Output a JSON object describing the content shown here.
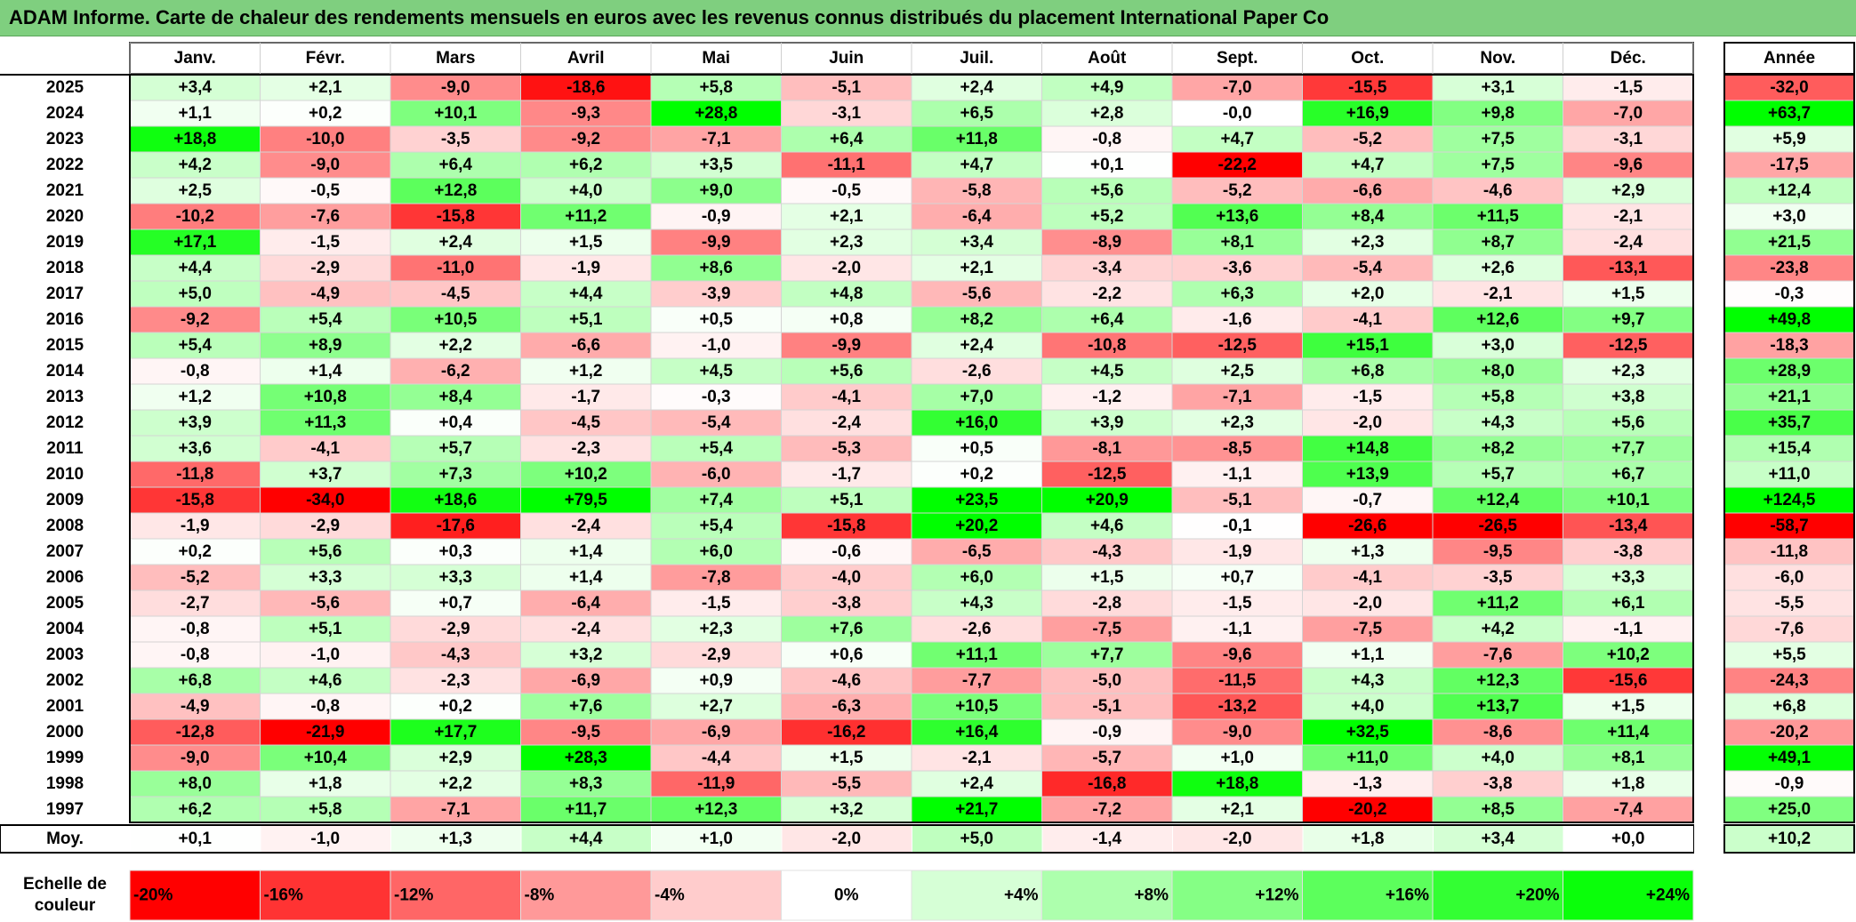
{
  "title": "ADAM Informe. Carte de chaleur des rendements mensuels en euros avec les revenus connus distribués du placement International Paper Co",
  "chart_data": {
    "type": "heatmap",
    "columns": [
      "Janv.",
      "Févr.",
      "Mars",
      "Avril",
      "Mai",
      "Juin",
      "Juil.",
      "Août",
      "Sept.",
      "Oct.",
      "Nov.",
      "Déc."
    ],
    "annual_header": "Année",
    "rows": [
      {
        "year": "2025",
        "values": [
          "+3,4",
          "+2,1",
          "-9,0",
          "-18,6",
          "+5,8",
          "-5,1",
          "+2,4",
          "+4,9",
          "-7,0",
          "-15,5",
          "+3,1",
          "-1,5"
        ],
        "annual": "-32,0"
      },
      {
        "year": "2024",
        "values": [
          "+1,1",
          "+0,2",
          "+10,1",
          "-9,3",
          "+28,8",
          "-3,1",
          "+6,5",
          "+2,8",
          "-0,0",
          "+16,9",
          "+9,8",
          "-7,0"
        ],
        "annual": "+63,7"
      },
      {
        "year": "2023",
        "values": [
          "+18,8",
          "-10,0",
          "-3,5",
          "-9,2",
          "-7,1",
          "+6,4",
          "+11,8",
          "-0,8",
          "+4,7",
          "-5,2",
          "+7,5",
          "-3,1"
        ],
        "annual": "+5,9"
      },
      {
        "year": "2022",
        "values": [
          "+4,2",
          "-9,0",
          "+6,4",
          "+6,2",
          "+3,5",
          "-11,1",
          "+4,7",
          "+0,1",
          "-22,2",
          "+4,7",
          "+7,5",
          "-9,6"
        ],
        "annual": "-17,5"
      },
      {
        "year": "2021",
        "values": [
          "+2,5",
          "-0,5",
          "+12,8",
          "+4,0",
          "+9,0",
          "-0,5",
          "-5,8",
          "+5,6",
          "-5,2",
          "-6,6",
          "-4,6",
          "+2,9"
        ],
        "annual": "+12,4"
      },
      {
        "year": "2020",
        "values": [
          "-10,2",
          "-7,6",
          "-15,8",
          "+11,2",
          "-0,9",
          "+2,1",
          "-6,4",
          "+5,2",
          "+13,6",
          "+8,4",
          "+11,5",
          "-2,1"
        ],
        "annual": "+3,0"
      },
      {
        "year": "2019",
        "values": [
          "+17,1",
          "-1,5",
          "+2,4",
          "+1,5",
          "-9,9",
          "+2,3",
          "+3,4",
          "-8,9",
          "+8,1",
          "+2,3",
          "+8,7",
          "-2,4"
        ],
        "annual": "+21,5"
      },
      {
        "year": "2018",
        "values": [
          "+4,4",
          "-2,9",
          "-11,0",
          "-1,9",
          "+8,6",
          "-2,0",
          "+2,1",
          "-3,4",
          "-3,6",
          "-5,4",
          "+2,6",
          "-13,1"
        ],
        "annual": "-23,8"
      },
      {
        "year": "2017",
        "values": [
          "+5,0",
          "-4,9",
          "-4,5",
          "+4,4",
          "-3,9",
          "+4,8",
          "-5,6",
          "-2,2",
          "+6,3",
          "+2,0",
          "-2,1",
          "+1,5"
        ],
        "annual": "-0,3"
      },
      {
        "year": "2016",
        "values": [
          "-9,2",
          "+5,4",
          "+10,5",
          "+5,1",
          "+0,5",
          "+0,8",
          "+8,2",
          "+6,4",
          "-1,6",
          "-4,1",
          "+12,6",
          "+9,7"
        ],
        "annual": "+49,8"
      },
      {
        "year": "2015",
        "values": [
          "+5,4",
          "+8,9",
          "+2,2",
          "-6,6",
          "-1,0",
          "-9,9",
          "+2,4",
          "-10,8",
          "-12,5",
          "+15,1",
          "+3,0",
          "-12,5"
        ],
        "annual": "-18,3"
      },
      {
        "year": "2014",
        "values": [
          "-0,8",
          "+1,4",
          "-6,2",
          "+1,2",
          "+4,5",
          "+5,6",
          "-2,6",
          "+4,5",
          "+2,5",
          "+6,8",
          "+8,0",
          "+2,3"
        ],
        "annual": "+28,9"
      },
      {
        "year": "2013",
        "values": [
          "+1,2",
          "+10,8",
          "+8,4",
          "-1,7",
          "-0,3",
          "-4,1",
          "+7,0",
          "-1,2",
          "-7,1",
          "-1,5",
          "+5,8",
          "+3,8"
        ],
        "annual": "+21,1"
      },
      {
        "year": "2012",
        "values": [
          "+3,9",
          "+11,3",
          "+0,4",
          "-4,5",
          "-5,4",
          "-2,4",
          "+16,0",
          "+3,9",
          "+2,3",
          "-2,0",
          "+4,3",
          "+5,6"
        ],
        "annual": "+35,7"
      },
      {
        "year": "2011",
        "values": [
          "+3,6",
          "-4,1",
          "+5,7",
          "-2,3",
          "+5,4",
          "-5,3",
          "+0,5",
          "-8,1",
          "-8,5",
          "+14,8",
          "+8,2",
          "+7,7"
        ],
        "annual": "+15,4"
      },
      {
        "year": "2010",
        "values": [
          "-11,8",
          "+3,7",
          "+7,3",
          "+10,2",
          "-6,0",
          "-1,7",
          "+0,2",
          "-12,5",
          "-1,1",
          "+13,9",
          "+5,7",
          "+6,7"
        ],
        "annual": "+11,0"
      },
      {
        "year": "2009",
        "values": [
          "-15,8",
          "-34,0",
          "+18,6",
          "+79,5",
          "+7,4",
          "+5,1",
          "+23,5",
          "+20,9",
          "-5,1",
          "-0,7",
          "+12,4",
          "+10,1"
        ],
        "annual": "+124,5"
      },
      {
        "year": "2008",
        "values": [
          "-1,9",
          "-2,9",
          "-17,6",
          "-2,4",
          "+5,4",
          "-15,8",
          "+20,2",
          "+4,6",
          "-0,1",
          "-26,6",
          "-26,5",
          "-13,4"
        ],
        "annual": "-58,7"
      },
      {
        "year": "2007",
        "values": [
          "+0,2",
          "+5,6",
          "+0,3",
          "+1,4",
          "+6,0",
          "-0,6",
          "-6,5",
          "-4,3",
          "-1,9",
          "+1,3",
          "-9,5",
          "-3,8"
        ],
        "annual": "-11,8"
      },
      {
        "year": "2006",
        "values": [
          "-5,2",
          "+3,3",
          "+3,3",
          "+1,4",
          "-7,8",
          "-4,0",
          "+6,0",
          "+1,5",
          "+0,7",
          "-4,1",
          "-3,5",
          "+3,3"
        ],
        "annual": "-6,0"
      },
      {
        "year": "2005",
        "values": [
          "-2,7",
          "-5,6",
          "+0,7",
          "-6,4",
          "-1,5",
          "-3,8",
          "+4,3",
          "-2,8",
          "-1,5",
          "-2,0",
          "+11,2",
          "+6,1"
        ],
        "annual": "-5,5"
      },
      {
        "year": "2004",
        "values": [
          "-0,8",
          "+5,1",
          "-2,9",
          "-2,4",
          "+2,3",
          "+7,6",
          "-2,6",
          "-7,5",
          "-1,1",
          "-7,5",
          "+4,2",
          "-1,1"
        ],
        "annual": "-7,6"
      },
      {
        "year": "2003",
        "values": [
          "-0,8",
          "-1,0",
          "-4,3",
          "+3,2",
          "-2,9",
          "+0,6",
          "+11,1",
          "+7,7",
          "-9,6",
          "+1,1",
          "-7,6",
          "+10,2"
        ],
        "annual": "+5,5"
      },
      {
        "year": "2002",
        "values": [
          "+6,8",
          "+4,6",
          "-2,3",
          "-6,9",
          "+0,9",
          "-4,6",
          "-7,7",
          "-5,0",
          "-11,5",
          "+4,3",
          "+12,3",
          "-15,6"
        ],
        "annual": "-24,3"
      },
      {
        "year": "2001",
        "values": [
          "-4,9",
          "-0,8",
          "+0,2",
          "+7,6",
          "+2,7",
          "-6,3",
          "+10,5",
          "-5,1",
          "-13,2",
          "+4,0",
          "+13,7",
          "+1,5"
        ],
        "annual": "+6,8"
      },
      {
        "year": "2000",
        "values": [
          "-12,8",
          "-21,9",
          "+17,7",
          "-9,5",
          "-6,9",
          "-16,2",
          "+16,4",
          "-0,9",
          "-9,0",
          "+32,5",
          "-8,6",
          "+11,4"
        ],
        "annual": "-20,2"
      },
      {
        "year": "1999",
        "values": [
          "-9,0",
          "+10,4",
          "+2,9",
          "+28,3",
          "-4,4",
          "+1,5",
          "-2,1",
          "-5,7",
          "+1,0",
          "+11,0",
          "+4,0",
          "+8,1"
        ],
        "annual": "+49,1"
      },
      {
        "year": "1998",
        "values": [
          "+8,0",
          "+1,8",
          "+2,2",
          "+8,3",
          "-11,9",
          "-5,5",
          "+2,4",
          "-16,8",
          "+18,8",
          "-1,3",
          "-3,8",
          "+1,8"
        ],
        "annual": "-0,9"
      },
      {
        "year": "1997",
        "values": [
          "+6,2",
          "+5,8",
          "-7,1",
          "+11,7",
          "+12,3",
          "+3,2",
          "+21,7",
          "-7,2",
          "+2,1",
          "-20,2",
          "+8,5",
          "-7,4"
        ],
        "annual": "+25,0"
      }
    ],
    "average": {
      "label": "Moy.",
      "values": [
        "+0,1",
        "-1,0",
        "+1,3",
        "+4,4",
        "+1,0",
        "-2,0",
        "+5,0",
        "-1,4",
        "-2,0",
        "+1,8",
        "+3,4",
        "+0,0"
      ],
      "annual": "+10,2"
    },
    "color_scale": {
      "label": "Echelle de couleur",
      "steps": [
        {
          "label": "-20%",
          "value": -20,
          "color": "#ff0000"
        },
        {
          "label": "-16%",
          "value": -16,
          "color": "#ff3333"
        },
        {
          "label": "-12%",
          "value": -12,
          "color": "#ff6666"
        },
        {
          "label": "-8%",
          "value": -8,
          "color": "#ff9999"
        },
        {
          "label": "-4%",
          "value": -4,
          "color": "#ffcccc"
        },
        {
          "label": "0%",
          "value": 0,
          "color": "#ffffff"
        },
        {
          "label": "+4%",
          "value": 4,
          "color": "#d6ffd6"
        },
        {
          "label": "+8%",
          "value": 8,
          "color": "#adffad"
        },
        {
          "label": "+12%",
          "value": 12,
          "color": "#85ff85"
        },
        {
          "label": "+16%",
          "value": 16,
          "color": "#5cff5c"
        },
        {
          "label": "+20%",
          "value": 20,
          "color": "#33ff33"
        },
        {
          "label": "+24%",
          "value": 24,
          "color": "#0aff0a"
        }
      ]
    },
    "colors": {
      "negative_max": "#ff0000",
      "zero": "#ffffff",
      "positive_max": "#00ff00",
      "title_bar": "#7fcf7f"
    }
  }
}
